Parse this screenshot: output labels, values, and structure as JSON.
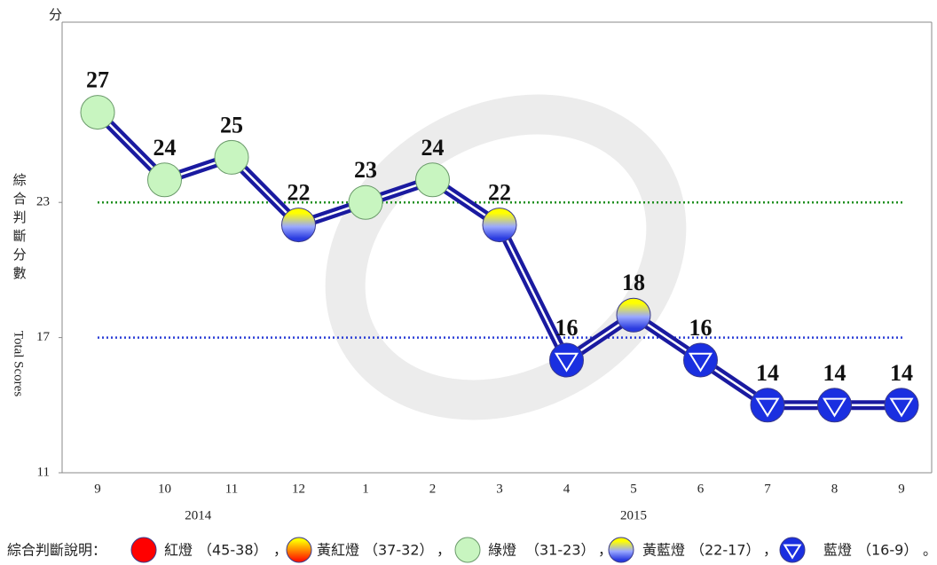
{
  "chart_data": {
    "type": "line",
    "y_unit": "分",
    "y_label_zh": "綜合判斷分數",
    "y_label_en": "Total Scores",
    "categories": [
      "9",
      "10",
      "11",
      "12",
      "1",
      "2",
      "3",
      "4",
      "5",
      "6",
      "7",
      "8",
      "9"
    ],
    "years": [
      {
        "label": "2014",
        "from": 0,
        "to": 3
      },
      {
        "label": "2015",
        "from": 4,
        "to": 12
      }
    ],
    "series": [
      {
        "name": "綜合判斷分數",
        "color": "#1a1aa0",
        "values": [
          27,
          24,
          25,
          22,
          23,
          24,
          22,
          16,
          18,
          16,
          14,
          14,
          14
        ],
        "marker_colors": [
          "green",
          "green",
          "green",
          "yellow-blue",
          "green",
          "green",
          "yellow-blue",
          "blue",
          "yellow-blue",
          "blue",
          "blue",
          "blue",
          "blue"
        ]
      }
    ],
    "ylim": [
      11,
      31
    ],
    "yticks": [
      11,
      17,
      23
    ],
    "reference_lines": [
      {
        "value": 23,
        "color": "#1f8f1f"
      },
      {
        "value": 17,
        "color": "#2b3ed6"
      }
    ],
    "legend_title": "綜合判斷說明：",
    "legend": [
      {
        "name": "紅燈",
        "range": "（45-38）",
        "marker": "red",
        "sep": "，"
      },
      {
        "name": "黃紅燈",
        "range": "（37-32）",
        "marker": "yellow-red",
        "sep": "，"
      },
      {
        "name": "綠燈",
        "range": "（31-23）",
        "marker": "green",
        "sep": "，"
      },
      {
        "name": "黃藍燈",
        "range": "（22-17）",
        "marker": "yellow-blue",
        "sep": "，"
      },
      {
        "name": "藍燈",
        "range": "（16-9）",
        "marker": "blue",
        "sep": "。"
      }
    ]
  }
}
